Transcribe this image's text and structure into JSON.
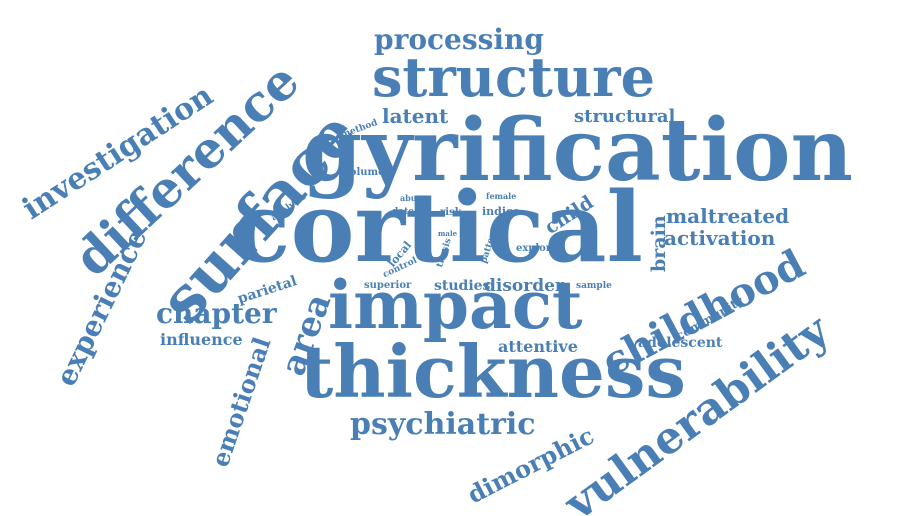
{
  "color": "#4a7fb5",
  "words": [
    {
      "text": "gyrification",
      "weight": 100
    },
    {
      "text": "cortical",
      "weight": 98
    },
    {
      "text": "surface",
      "weight": 82
    },
    {
      "text": "thickness",
      "weight": 80
    },
    {
      "text": "impact",
      "weight": 72
    },
    {
      "text": "vulnerability",
      "weight": 66
    },
    {
      "text": "difference",
      "weight": 64
    },
    {
      "text": "structure",
      "weight": 56
    },
    {
      "text": "childhood",
      "weight": 50
    },
    {
      "text": "investigation",
      "weight": 42
    },
    {
      "text": "experience",
      "weight": 36
    },
    {
      "text": "psychiatric",
      "weight": 33
    },
    {
      "text": "area",
      "weight": 32
    },
    {
      "text": "dimorphic",
      "weight": 30
    },
    {
      "text": "emotional",
      "weight": 29
    },
    {
      "text": "processing",
      "weight": 28
    },
    {
      "text": "chapter",
      "weight": 27
    },
    {
      "text": "maltreated",
      "weight": 20
    },
    {
      "text": "activation",
      "weight": 20
    },
    {
      "text": "latent",
      "weight": 20
    },
    {
      "text": "brain",
      "weight": 19
    },
    {
      "text": "child",
      "weight": 18
    },
    {
      "text": "structural",
      "weight": 17
    },
    {
      "text": "disorder",
      "weight": 16
    },
    {
      "text": "influence",
      "weight": 15
    },
    {
      "text": "attentive",
      "weight": 15
    },
    {
      "text": "adolescent",
      "weight": 14
    },
    {
      "text": "parietal",
      "weight": 14
    },
    {
      "text": "studies",
      "weight": 13
    },
    {
      "text": "community",
      "weight": 12
    },
    {
      "text": "indice",
      "weight": 11
    },
    {
      "text": "superior",
      "weight": 10
    },
    {
      "text": "local",
      "weight": 10
    },
    {
      "text": "explore",
      "weight": 9
    },
    {
      "text": "volume",
      "weight": 9
    },
    {
      "text": "risk",
      "weight": 9
    },
    {
      "text": "method",
      "weight": 8
    },
    {
      "text": "analysis",
      "weight": 8
    },
    {
      "text": "sample",
      "weight": 8
    },
    {
      "text": "control",
      "weight": 8
    },
    {
      "text": "pattern",
      "weight": 7
    },
    {
      "text": "thesis",
      "weight": 7
    },
    {
      "text": "female",
      "weight": 7
    },
    {
      "text": "abuse",
      "weight": 7
    },
    {
      "text": "date",
      "weight": 7
    },
    {
      "text": "male",
      "weight": 6
    }
  ]
}
